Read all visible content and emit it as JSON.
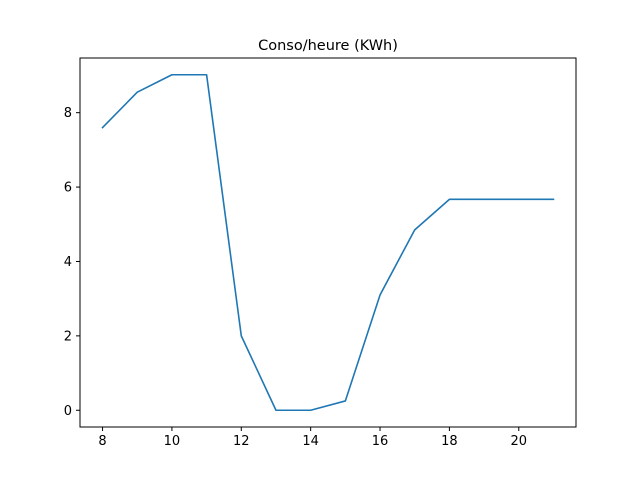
{
  "chart_data": {
    "type": "line",
    "title": "Conso/heure (KWh)",
    "xlabel": "",
    "ylabel": "",
    "x": [
      8,
      9,
      10,
      11,
      12,
      13,
      14,
      15,
      16,
      17,
      18,
      19,
      20,
      21
    ],
    "series": [
      {
        "values": [
          7.6,
          8.55,
          9.02,
          9.02,
          2.0,
          0.0,
          0.0,
          0.25,
          3.1,
          4.85,
          5.67,
          5.67,
          5.67,
          5.67
        ],
        "color": "#1f77b4"
      }
    ],
    "xlim": [
      7.35,
      21.65
    ],
    "ylim": [
      -0.45,
      9.47
    ],
    "xticks": [
      8,
      10,
      12,
      14,
      16,
      18,
      20
    ],
    "xtick_labels": [
      "8",
      "10",
      "12",
      "14",
      "16",
      "18",
      "20"
    ],
    "yticks": [
      0,
      2,
      4,
      6,
      8
    ],
    "ytick_labels": [
      "0",
      "2",
      "4",
      "6",
      "8"
    ],
    "grid": false,
    "legend": "none"
  }
}
